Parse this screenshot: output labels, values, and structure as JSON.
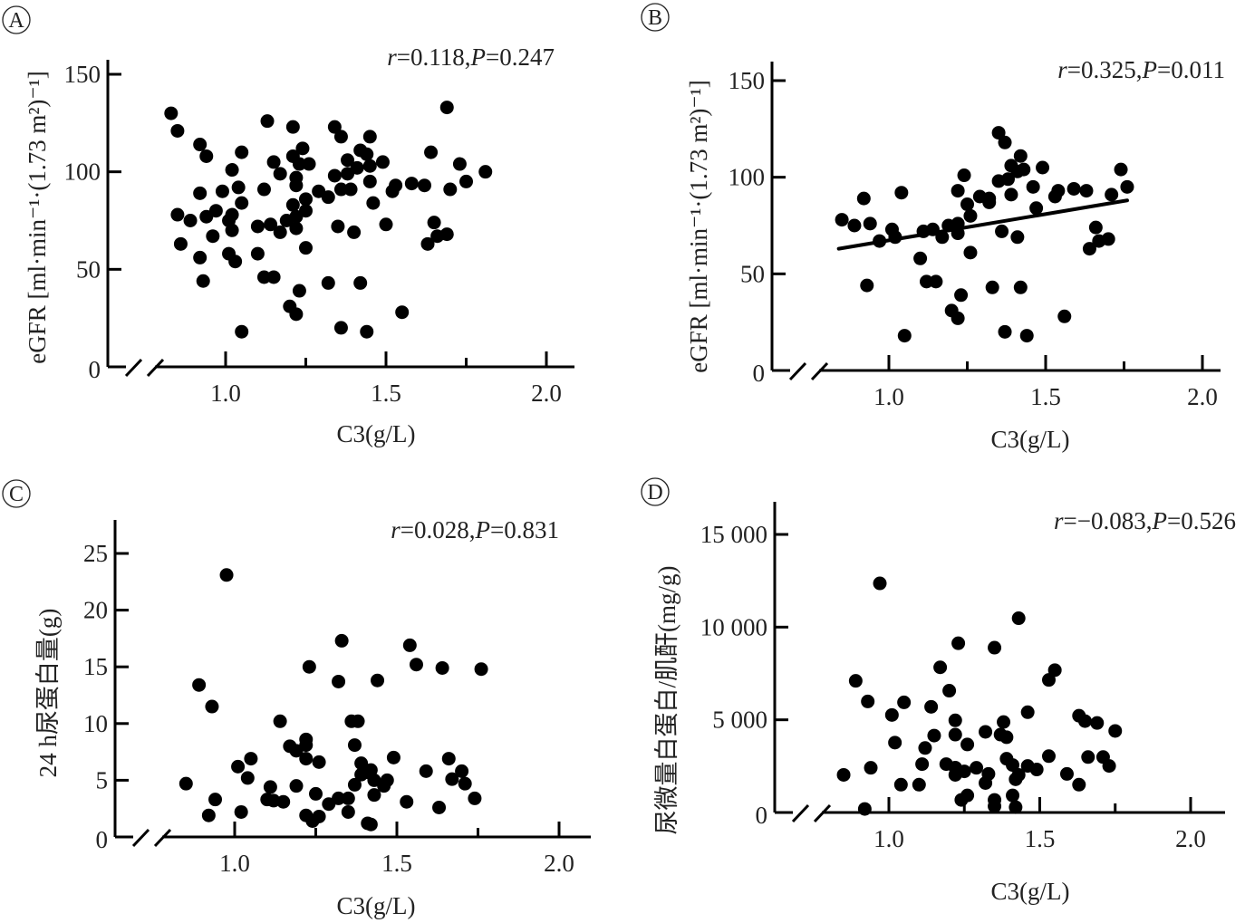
{
  "figure": {
    "colors": {
      "ink": "#000000",
      "text": "#222222",
      "background": "#ffffff"
    }
  },
  "chart_data": [
    {
      "panel": "A",
      "type": "scatter",
      "title": "",
      "annotation": {
        "r_label": "r",
        "r_value": "=0.118",
        "sep": ",",
        "p_label": "P",
        "p_value": "=0.247"
      },
      "xlabel": "C3(g/L)",
      "ylabel": "eGFR [ml·min⁻¹·(1.73 m²)⁻¹]",
      "xlim": [
        0.7,
        2.1
      ],
      "ylim": [
        0,
        160
      ],
      "x_ticks": [
        1.0,
        1.25,
        1.5,
        1.75,
        2.0
      ],
      "x_tick_labels": [
        "1.0",
        "",
        "1.5",
        "",
        "2.0"
      ],
      "y_ticks": [
        0,
        50,
        100,
        150
      ],
      "y_tick_labels": [
        "0",
        "50",
        "100",
        "150"
      ],
      "axis_break": true,
      "grid": false,
      "regression_line": null,
      "points": [
        [
          0.83,
          130
        ],
        [
          0.85,
          121
        ],
        [
          0.92,
          114
        ],
        [
          0.94,
          108
        ],
        [
          1.05,
          110
        ],
        [
          1.02,
          101
        ],
        [
          0.92,
          89
        ],
        [
          0.99,
          90
        ],
        [
          1.04,
          92
        ],
        [
          1.05,
          84
        ],
        [
          0.85,
          78
        ],
        [
          0.89,
          75
        ],
        [
          0.94,
          77
        ],
        [
          0.97,
          80
        ],
        [
          1.02,
          78
        ],
        [
          1.01,
          75
        ],
        [
          1.02,
          70
        ],
        [
          0.96,
          67
        ],
        [
          0.86,
          63
        ],
        [
          0.92,
          56
        ],
        [
          1.01,
          58
        ],
        [
          1.03,
          54
        ],
        [
          0.93,
          44
        ],
        [
          1.05,
          18
        ],
        [
          1.13,
          126
        ],
        [
          1.21,
          123
        ],
        [
          1.34,
          123
        ],
        [
          1.36,
          118
        ],
        [
          1.45,
          118
        ],
        [
          1.24,
          112
        ],
        [
          1.21,
          108
        ],
        [
          1.42,
          111
        ],
        [
          1.44,
          109
        ],
        [
          1.15,
          105
        ],
        [
          1.23,
          104
        ],
        [
          1.26,
          104
        ],
        [
          1.38,
          106
        ],
        [
          1.49,
          105
        ],
        [
          1.45,
          103
        ],
        [
          1.41,
          102
        ],
        [
          1.17,
          99
        ],
        [
          1.34,
          98
        ],
        [
          1.38,
          99
        ],
        [
          1.22,
          97
        ],
        [
          1.45,
          95
        ],
        [
          1.22,
          93
        ],
        [
          1.12,
          91
        ],
        [
          1.53,
          93
        ],
        [
          1.52,
          90
        ],
        [
          1.29,
          90
        ],
        [
          1.32,
          87
        ],
        [
          1.36,
          91
        ],
        [
          1.39,
          91
        ],
        [
          1.25,
          86
        ],
        [
          1.21,
          83
        ],
        [
          1.25,
          80
        ],
        [
          1.46,
          84
        ],
        [
          1.1,
          72
        ],
        [
          1.14,
          73
        ],
        [
          1.19,
          75
        ],
        [
          1.22,
          77
        ],
        [
          1.17,
          69
        ],
        [
          1.22,
          71
        ],
        [
          1.35,
          72
        ],
        [
          1.4,
          69
        ],
        [
          1.5,
          73
        ],
        [
          1.25,
          61
        ],
        [
          1.1,
          58
        ],
        [
          1.12,
          46
        ],
        [
          1.15,
          46
        ],
        [
          1.32,
          43
        ],
        [
          1.42,
          43
        ],
        [
          1.23,
          39
        ],
        [
          1.2,
          31
        ],
        [
          1.22,
          27
        ],
        [
          1.36,
          20
        ],
        [
          1.44,
          18
        ],
        [
          1.55,
          28
        ],
        [
          1.69,
          133
        ],
        [
          1.64,
          110
        ],
        [
          1.73,
          104
        ],
        [
          1.81,
          100
        ],
        [
          1.75,
          95
        ],
        [
          1.7,
          91
        ],
        [
          1.58,
          94
        ],
        [
          1.62,
          93
        ],
        [
          1.65,
          74
        ],
        [
          1.69,
          68
        ],
        [
          1.66,
          67
        ],
        [
          1.63,
          63
        ]
      ]
    },
    {
      "panel": "B",
      "type": "scatter",
      "title": "",
      "annotation": {
        "r_label": "r",
        "r_value": "=0.325",
        "sep": ",",
        "p_label": "P",
        "p_value": "=0.011"
      },
      "xlabel": "C3(g/L)",
      "ylabel": "eGFR [ml·min⁻¹·(1.73 m²)⁻¹]",
      "xlim": [
        0.7,
        2.1
      ],
      "ylim": [
        0,
        160
      ],
      "x_ticks": [
        1.0,
        1.25,
        1.5,
        1.75,
        2.0
      ],
      "x_tick_labels": [
        "1.0",
        "",
        "1.5",
        "",
        "2.0"
      ],
      "y_ticks": [
        0,
        50,
        100,
        150
      ],
      "y_tick_labels": [
        "0",
        "50",
        "100",
        "150"
      ],
      "axis_break": true,
      "grid": false,
      "regression_line": {
        "x": [
          0.84,
          1.76
        ],
        "y": [
          63,
          88
        ]
      },
      "points": [
        [
          0.85,
          78
        ],
        [
          0.89,
          75
        ],
        [
          0.92,
          89
        ],
        [
          0.94,
          76
        ],
        [
          0.97,
          67
        ],
        [
          1.01,
          73
        ],
        [
          1.02,
          69
        ],
        [
          1.04,
          92
        ],
        [
          0.93,
          44
        ],
        [
          1.05,
          18
        ],
        [
          1.1,
          58
        ],
        [
          1.11,
          72
        ],
        [
          1.14,
          73
        ],
        [
          1.17,
          69
        ],
        [
          1.19,
          75
        ],
        [
          1.22,
          76
        ],
        [
          1.22,
          71
        ],
        [
          1.12,
          46
        ],
        [
          1.15,
          46
        ],
        [
          1.2,
          31
        ],
        [
          1.22,
          27
        ],
        [
          1.23,
          39
        ],
        [
          1.22,
          93
        ],
        [
          1.24,
          101
        ],
        [
          1.25,
          86
        ],
        [
          1.26,
          80
        ],
        [
          1.26,
          61
        ],
        [
          1.29,
          90
        ],
        [
          1.32,
          89
        ],
        [
          1.32,
          87
        ],
        [
          1.33,
          43
        ],
        [
          1.35,
          123
        ],
        [
          1.37,
          118
        ],
        [
          1.35,
          98
        ],
        [
          1.38,
          99
        ],
        [
          1.39,
          106
        ],
        [
          1.42,
          111
        ],
        [
          1.43,
          104
        ],
        [
          1.41,
          103
        ],
        [
          1.39,
          91
        ],
        [
          1.36,
          72
        ],
        [
          1.41,
          69
        ],
        [
          1.42,
          43
        ],
        [
          1.37,
          20
        ],
        [
          1.44,
          18
        ],
        [
          1.46,
          95
        ],
        [
          1.47,
          84
        ],
        [
          1.49,
          105
        ],
        [
          1.53,
          90
        ],
        [
          1.54,
          93
        ],
        [
          1.59,
          94
        ],
        [
          1.63,
          93
        ],
        [
          1.56,
          28
        ],
        [
          1.66,
          74
        ],
        [
          1.67,
          67
        ],
        [
          1.7,
          68
        ],
        [
          1.64,
          63
        ],
        [
          1.71,
          91
        ],
        [
          1.74,
          104
        ],
        [
          1.76,
          95
        ]
      ]
    },
    {
      "panel": "C",
      "type": "scatter",
      "title": "",
      "annotation": {
        "r_label": "r",
        "r_value": "=0.028",
        "sep": ",",
        "p_label": "P",
        "p_value": "=0.831"
      },
      "xlabel": "C3(g/L)",
      "ylabel": "24 h尿蛋白量(g)",
      "xlim": [
        0.7,
        2.1
      ],
      "ylim": [
        0,
        28
      ],
      "x_ticks": [
        1.0,
        1.25,
        1.5,
        1.75,
        2.0
      ],
      "x_tick_labels": [
        "1.0",
        "",
        "1.5",
        "",
        "2.0"
      ],
      "y_ticks": [
        0,
        5,
        10,
        15,
        20,
        25
      ],
      "y_tick_labels": [
        "0",
        "5",
        "10",
        "15",
        "20",
        "25"
      ],
      "axis_break": true,
      "grid": false,
      "regression_line": null,
      "points": [
        [
          0.975,
          23.1
        ],
        [
          0.89,
          13.4
        ],
        [
          0.93,
          11.5
        ],
        [
          0.85,
          4.7
        ],
        [
          0.94,
          3.3
        ],
        [
          0.92,
          1.9
        ],
        [
          1.02,
          2.2
        ],
        [
          1.01,
          6.2
        ],
        [
          1.05,
          6.9
        ],
        [
          1.04,
          5.2
        ],
        [
          1.11,
          4.4
        ],
        [
          1.1,
          3.3
        ],
        [
          1.12,
          3.2
        ],
        [
          1.15,
          3.1
        ],
        [
          1.14,
          10.2
        ],
        [
          1.17,
          8.0
        ],
        [
          1.19,
          7.6
        ],
        [
          1.22,
          8.6
        ],
        [
          1.22,
          8.1
        ],
        [
          1.22,
          6.9
        ],
        [
          1.26,
          6.6
        ],
        [
          1.19,
          4.5
        ],
        [
          1.25,
          3.8
        ],
        [
          1.23,
          15.0
        ],
        [
          1.22,
          1.9
        ],
        [
          1.24,
          1.4
        ],
        [
          1.26,
          1.8
        ],
        [
          1.29,
          2.9
        ],
        [
          1.32,
          3.4
        ],
        [
          1.35,
          3.4
        ],
        [
          1.35,
          2.2
        ],
        [
          1.33,
          17.3
        ],
        [
          1.32,
          13.7
        ],
        [
          1.36,
          10.2
        ],
        [
          1.38,
          10.2
        ],
        [
          1.37,
          8.1
        ],
        [
          1.37,
          4.6
        ],
        [
          1.39,
          6.5
        ],
        [
          1.39,
          5.5
        ],
        [
          1.41,
          5.7
        ],
        [
          1.42,
          5.9
        ],
        [
          1.43,
          5.0
        ],
        [
          1.46,
          4.5
        ],
        [
          1.47,
          5.0
        ],
        [
          1.43,
          3.7
        ],
        [
          1.41,
          1.2
        ],
        [
          1.42,
          1.1
        ],
        [
          1.44,
          13.8
        ],
        [
          1.49,
          7.0
        ],
        [
          1.54,
          16.9
        ],
        [
          1.56,
          15.2
        ],
        [
          1.53,
          3.1
        ],
        [
          1.59,
          5.8
        ],
        [
          1.64,
          14.9
        ],
        [
          1.63,
          2.6
        ],
        [
          1.66,
          6.9
        ],
        [
          1.67,
          5.1
        ],
        [
          1.7,
          5.8
        ],
        [
          1.71,
          4.7
        ],
        [
          1.74,
          3.4
        ],
        [
          1.76,
          14.8
        ]
      ]
    },
    {
      "panel": "D",
      "type": "scatter",
      "title": "",
      "annotation": {
        "r_label": "r",
        "r_value": "=−0.083",
        "sep": ",",
        "p_label": "P",
        "p_value": "=0.526"
      },
      "xlabel": "C3(g/L)",
      "ylabel": "尿微量白蛋白/肌酐(mg/g)",
      "xlim": [
        0.7,
        2.1
      ],
      "ylim": [
        0,
        15500
      ],
      "x_ticks": [
        1.0,
        1.25,
        1.5,
        1.75,
        2.0
      ],
      "x_tick_labels": [
        "1.0",
        "",
        "1.5",
        "",
        "2.0"
      ],
      "y_ticks": [
        0,
        5000,
        10000,
        15000
      ],
      "y_tick_labels": [
        "0",
        "5 000",
        "10 000",
        "15 000"
      ],
      "axis_break": true,
      "grid": false,
      "regression_line": null,
      "points": [
        [
          0.97,
          12360
        ],
        [
          1.43,
          10480
        ],
        [
          1.23,
          9130
        ],
        [
          1.35,
          8890
        ],
        [
          1.17,
          7830
        ],
        [
          1.55,
          7680
        ],
        [
          1.53,
          7150
        ],
        [
          0.89,
          7100
        ],
        [
          1.2,
          6570
        ],
        [
          0.93,
          5990
        ],
        [
          1.05,
          5940
        ],
        [
          1.14,
          5700
        ],
        [
          1.01,
          5260
        ],
        [
          1.46,
          5410
        ],
        [
          1.22,
          4970
        ],
        [
          1.38,
          4880
        ],
        [
          1.63,
          5220
        ],
        [
          1.65,
          4930
        ],
        [
          1.69,
          4830
        ],
        [
          1.75,
          4400
        ],
        [
          1.15,
          4150
        ],
        [
          1.22,
          4200
        ],
        [
          1.32,
          4350
        ],
        [
          1.37,
          4200
        ],
        [
          1.39,
          4060
        ],
        [
          1.02,
          3770
        ],
        [
          1.12,
          3480
        ],
        [
          1.26,
          3670
        ],
        [
          1.53,
          3040
        ],
        [
          1.66,
          2990
        ],
        [
          1.71,
          2990
        ],
        [
          1.73,
          2510
        ],
        [
          1.39,
          2900
        ],
        [
          1.41,
          2560
        ],
        [
          1.46,
          2510
        ],
        [
          1.49,
          2320
        ],
        [
          0.94,
          2410
        ],
        [
          1.11,
          2610
        ],
        [
          1.19,
          2610
        ],
        [
          1.22,
          2420
        ],
        [
          1.25,
          2220
        ],
        [
          1.29,
          2410
        ],
        [
          1.22,
          2030
        ],
        [
          1.33,
          2080
        ],
        [
          1.32,
          1590
        ],
        [
          1.43,
          2030
        ],
        [
          1.42,
          1790
        ],
        [
          1.59,
          2080
        ],
        [
          1.63,
          1500
        ],
        [
          0.85,
          2030
        ],
        [
          1.04,
          1500
        ],
        [
          1.1,
          1500
        ],
        [
          1.26,
          920
        ],
        [
          1.24,
          680
        ],
        [
          1.35,
          680
        ],
        [
          1.35,
          340
        ],
        [
          1.41,
          920
        ],
        [
          1.42,
          290
        ],
        [
          0.92,
          190
        ]
      ]
    }
  ]
}
